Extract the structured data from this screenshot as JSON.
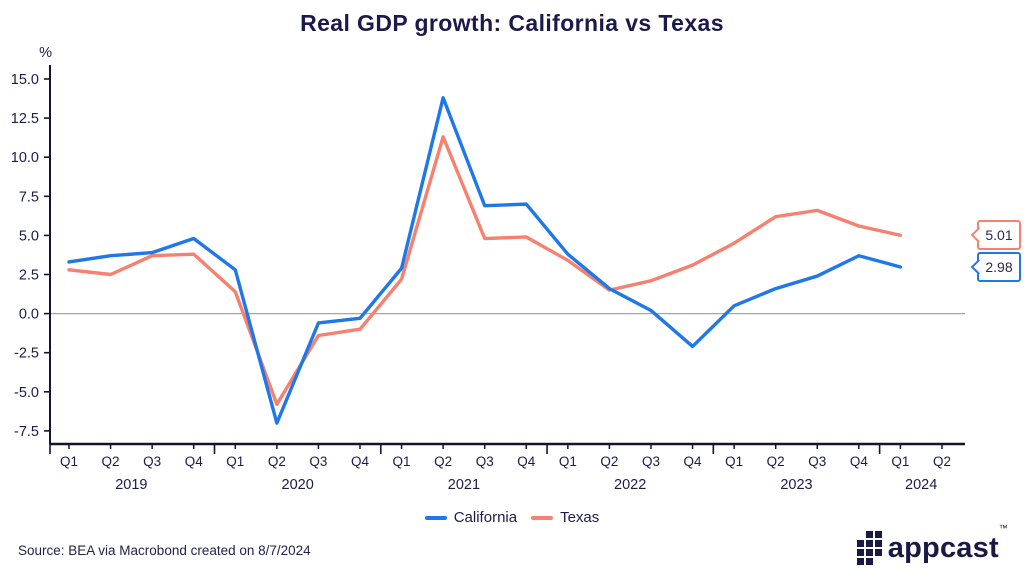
{
  "chart_data": {
    "type": "line",
    "title": "Real GDP growth: California vs Texas",
    "ylabel": "%",
    "ylim": [
      -7.5,
      15.0
    ],
    "y_ticks": [
      15.0,
      12.5,
      10.0,
      7.5,
      5.0,
      2.5,
      0.0,
      -2.5,
      -5.0,
      -7.5
    ],
    "grid": "zero-baseline-only",
    "legend_position": "bottom-center",
    "x_quarter_labels": [
      "Q1",
      "Q2",
      "Q3",
      "Q4",
      "Q1",
      "Q2",
      "Q3",
      "Q4",
      "Q1",
      "Q2",
      "Q3",
      "Q4",
      "Q1",
      "Q2",
      "Q3",
      "Q4",
      "Q1",
      "Q2",
      "Q3",
      "Q4",
      "Q1",
      "Q2"
    ],
    "x_year_labels": [
      "2019",
      "2020",
      "2021",
      "2022",
      "2023",
      "2024"
    ],
    "categories": [
      "2019 Q1",
      "2019 Q2",
      "2019 Q3",
      "2019 Q4",
      "2020 Q1",
      "2020 Q2",
      "2020 Q3",
      "2020 Q4",
      "2021 Q1",
      "2021 Q2",
      "2021 Q3",
      "2021 Q4",
      "2022 Q1",
      "2022 Q2",
      "2022 Q3",
      "2022 Q4",
      "2023 Q1",
      "2023 Q2",
      "2023 Q3",
      "2023 Q4",
      "2024 Q1"
    ],
    "series": [
      {
        "name": "California",
        "color": "#1E78E8",
        "end_label": "2.98",
        "values": [
          3.3,
          3.7,
          3.9,
          4.8,
          2.8,
          -7.0,
          -0.6,
          -0.3,
          2.9,
          13.8,
          6.9,
          7.0,
          3.8,
          1.6,
          0.2,
          -2.1,
          0.5,
          1.6,
          2.4,
          3.7,
          2.98
        ]
      },
      {
        "name": "Texas",
        "color": "#F8806F",
        "end_label": "5.01",
        "values": [
          2.8,
          2.5,
          3.7,
          3.8,
          1.4,
          -5.8,
          -1.4,
          -1.0,
          2.2,
          11.3,
          4.8,
          4.9,
          3.4,
          1.5,
          2.1,
          3.1,
          4.5,
          6.2,
          6.6,
          5.6,
          5.01
        ]
      }
    ]
  },
  "footer": {
    "source": "Source: BEA via Macrobond created on 8/7/2024"
  },
  "branding": {
    "logo_text": "appcast",
    "trademark": "™",
    "logo_grid": [
      [
        0,
        1,
        1
      ],
      [
        1,
        1,
        1
      ],
      [
        1,
        1,
        1
      ],
      [
        1,
        1,
        0
      ]
    ]
  },
  "colors": {
    "navy_text": "#1C1B4B",
    "axis": "#14142E",
    "zero_line": "#A6A6A6",
    "california_blue": "#1E78E8",
    "texas_coral": "#F8806F"
  }
}
